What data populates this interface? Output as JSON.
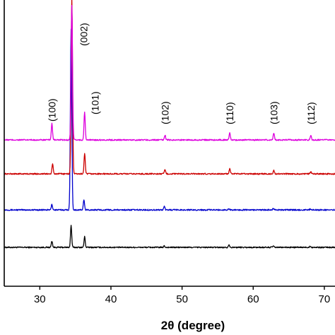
{
  "chart_data": {
    "type": "line",
    "title": "",
    "xlabel": "2θ (degree)",
    "ylabel": "",
    "xlim": [
      25,
      71.5
    ],
    "x_ticks": [
      "30",
      "40",
      "50",
      "60",
      "70"
    ],
    "x_tick_values": [
      30,
      40,
      50,
      60,
      70
    ],
    "grid": false,
    "legend": "none",
    "peak_labels": [
      {
        "text": "(100)",
        "x": 31.7
      },
      {
        "text": "(002)",
        "x": 34.5
      },
      {
        "text": "(101)",
        "x": 36.3
      },
      {
        "text": "(102)",
        "x": 47.6
      },
      {
        "text": "(110)",
        "x": 56.7
      },
      {
        "text": "(103)",
        "x": 62.9
      },
      {
        "text": "(112)",
        "x": 68.1
      }
    ],
    "series": [
      {
        "color": "#000000",
        "baseline": 0,
        "peaks": [
          {
            "x": 31.7,
            "h": 0.09
          },
          {
            "x": 34.4,
            "h": 0.31
          },
          {
            "x": 36.3,
            "h": 0.15
          },
          {
            "x": 47.5,
            "h": 0.02
          },
          {
            "x": 56.6,
            "h": 0.04
          },
          {
            "x": 62.8,
            "h": 0.02
          },
          {
            "x": 68.0,
            "h": 0.02
          }
        ]
      },
      {
        "color": "#0000CC",
        "baseline": 0.53,
        "peaks": [
          {
            "x": 31.7,
            "h": 0.08
          },
          {
            "x": 34.4,
            "h": 2.55
          },
          {
            "x": 36.2,
            "h": 0.14
          },
          {
            "x": 47.5,
            "h": 0.05
          },
          {
            "x": 56.6,
            "h": 0.02
          },
          {
            "x": 62.8,
            "h": 0.02
          },
          {
            "x": 68.0,
            "h": 0.01
          }
        ]
      },
      {
        "color": "#CC0000",
        "baseline": 1.04,
        "peaks": [
          {
            "x": 31.8,
            "h": 0.14
          },
          {
            "x": 34.5,
            "h": 2.48
          },
          {
            "x": 36.3,
            "h": 0.29
          },
          {
            "x": 47.6,
            "h": 0.06
          },
          {
            "x": 56.7,
            "h": 0.07
          },
          {
            "x": 62.9,
            "h": 0.05
          },
          {
            "x": 68.1,
            "h": 0.03
          }
        ]
      },
      {
        "color": "#DD00DD",
        "baseline": 1.52,
        "peaks": [
          {
            "x": 31.7,
            "h": 0.24
          },
          {
            "x": 34.5,
            "h": 1.9
          },
          {
            "x": 36.3,
            "h": 0.4
          },
          {
            "x": 47.6,
            "h": 0.07
          },
          {
            "x": 56.7,
            "h": 0.1
          },
          {
            "x": 62.9,
            "h": 0.1
          },
          {
            "x": 68.1,
            "h": 0.06
          }
        ]
      }
    ]
  }
}
